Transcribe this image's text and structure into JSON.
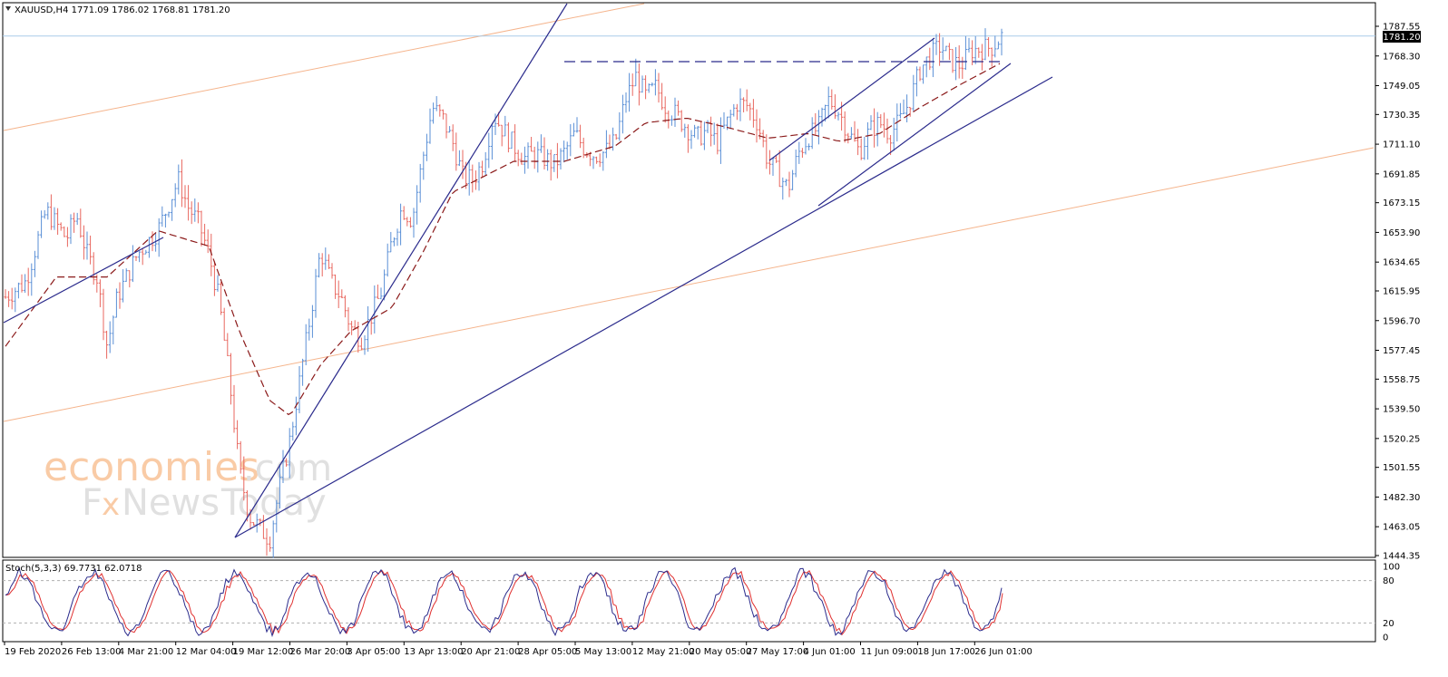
{
  "chart_data": [
    {
      "type": "candlestick",
      "header": "XAUUSD,H4  1771.09 1786.02 1768.81 1781.20",
      "symbol": "XAUUSD",
      "timeframe": "H4",
      "ohlc": {
        "open": 1771.09,
        "high": 1786.02,
        "low": 1768.81,
        "close": 1781.2
      },
      "current_price": 1781.2,
      "current_price_label": "1781.20",
      "ylim": [
        1444.35,
        1793
      ],
      "y_ticks": [
        1787.55,
        1768.3,
        1749.05,
        1730.35,
        1711.1,
        1691.85,
        1673.15,
        1653.9,
        1634.65,
        1615.95,
        1596.7,
        1577.45,
        1558.75,
        1539.5,
        1520.25,
        1501.55,
        1482.3,
        1463.05,
        1444.35
      ],
      "x_ticks": [
        "19 Feb 2020",
        "26 Feb 13:00",
        "4 Mar 21:00",
        "12 Mar 04:00",
        "19 Mar 12:00",
        "26 Mar 20:00",
        "3 Apr 05:00",
        "13 Apr 13:00",
        "20 Apr 21:00",
        "28 Apr 05:00",
        "5 May 13:00",
        "12 May 21:00",
        "20 May 05:00",
        "27 May 17:00",
        "4 Jun 01:00",
        "11 Jun 09:00",
        "18 Jun 17:00",
        "26 Jun 01:00"
      ],
      "price_path": [
        [
          0,
          1612
        ],
        [
          2,
          1622
        ],
        [
          4,
          1668
        ],
        [
          6,
          1650
        ],
        [
          7,
          1665
        ],
        [
          8,
          1640
        ],
        [
          9,
          1625
        ],
        [
          10,
          1580
        ],
        [
          11,
          1612
        ],
        [
          13,
          1640
        ],
        [
          15,
          1655
        ],
        [
          17,
          1688
        ],
        [
          18,
          1670
        ],
        [
          19,
          1660
        ],
        [
          20,
          1640
        ],
        [
          21,
          1610
        ],
        [
          22,
          1560
        ],
        [
          23,
          1500
        ],
        [
          24,
          1470
        ],
        [
          25,
          1462
        ],
        [
          26,
          1455
        ],
        [
          27,
          1490
        ],
        [
          28,
          1520
        ],
        [
          29,
          1560
        ],
        [
          30,
          1600
        ],
        [
          31,
          1642
        ],
        [
          32,
          1622
        ],
        [
          33,
          1612
        ],
        [
          34,
          1592
        ],
        [
          35,
          1585
        ],
        [
          36,
          1600
        ],
        [
          37,
          1616
        ],
        [
          38,
          1648
        ],
        [
          39,
          1670
        ],
        [
          40,
          1662
        ],
        [
          41,
          1700
        ],
        [
          42,
          1735
        ],
        [
          43,
          1728
        ],
        [
          44,
          1712
        ],
        [
          45,
          1690
        ],
        [
          46,
          1688
        ],
        [
          47,
          1700
        ],
        [
          48,
          1730
        ],
        [
          49,
          1720
        ],
        [
          50,
          1710
        ],
        [
          51,
          1702
        ],
        [
          52,
          1705
        ],
        [
          53,
          1702
        ],
        [
          54,
          1698
        ],
        [
          55,
          1706
        ],
        [
          56,
          1718
        ],
        [
          57,
          1708
        ],
        [
          58,
          1704
        ],
        [
          59,
          1706
        ],
        [
          60,
          1713
        ],
        [
          61,
          1740
        ],
        [
          62,
          1755
        ],
        [
          63,
          1742
        ],
        [
          64,
          1748
        ],
        [
          65,
          1735
        ],
        [
          66,
          1730
        ],
        [
          67,
          1722
        ],
        [
          68,
          1715
        ],
        [
          69,
          1720
        ],
        [
          70,
          1712
        ],
        [
          71,
          1725
        ],
        [
          72,
          1738
        ],
        [
          73,
          1736
        ],
        [
          74,
          1725
        ],
        [
          75,
          1700
        ],
        [
          76,
          1692
        ],
        [
          77,
          1682
        ],
        [
          78,
          1705
        ],
        [
          79,
          1716
        ],
        [
          80,
          1722
        ],
        [
          81,
          1740
        ],
        [
          82,
          1732
        ],
        [
          83,
          1718
        ],
        [
          84,
          1706
        ],
        [
          85,
          1720
        ],
        [
          86,
          1725
        ],
        [
          87,
          1718
        ],
        [
          88,
          1726
        ],
        [
          89,
          1740
        ],
        [
          90,
          1760
        ],
        [
          91,
          1768
        ],
        [
          92,
          1775
        ],
        [
          93,
          1765
        ],
        [
          94,
          1762
        ],
        [
          95,
          1772
        ],
        [
          96,
          1773
        ],
        [
          97,
          1774
        ],
        [
          98,
          1781
        ]
      ],
      "moving_average": [
        [
          0,
          1580
        ],
        [
          5,
          1625
        ],
        [
          10,
          1625
        ],
        [
          15,
          1655
        ],
        [
          20,
          1645
        ],
        [
          23,
          1590
        ],
        [
          26,
          1545
        ],
        [
          28,
          1535
        ],
        [
          31,
          1568
        ],
        [
          34,
          1590
        ],
        [
          38,
          1605
        ],
        [
          41,
          1640
        ],
        [
          44,
          1680
        ],
        [
          47,
          1690
        ],
        [
          50,
          1700
        ],
        [
          55,
          1700
        ],
        [
          60,
          1710
        ],
        [
          63,
          1725
        ],
        [
          67,
          1728
        ],
        [
          71,
          1722
        ],
        [
          75,
          1715
        ],
        [
          79,
          1718
        ],
        [
          82,
          1713
        ],
        [
          86,
          1718
        ],
        [
          90,
          1735
        ],
        [
          94,
          1750
        ],
        [
          98,
          1764
        ]
      ],
      "trendlines": [
        {
          "style": "solid",
          "color": "#2b2b8c",
          "from": [
            259,
            593
          ],
          "to": [
            625,
            4
          ]
        },
        {
          "style": "solid",
          "color": "#2b2b8c",
          "from": [
            4,
            356
          ],
          "to": [
            180,
            262
          ]
        },
        {
          "style": "solid",
          "color": "#2b2b8c",
          "from": [
            259,
            593
          ],
          "to": [
            1160,
            85
          ]
        },
        {
          "style": "solid",
          "color": "#2b2b8c",
          "from": [
            848,
            177
          ],
          "to": [
            1030,
            42
          ]
        },
        {
          "style": "solid",
          "color": "#2b2b8c",
          "from": [
            902,
            227
          ],
          "to": [
            1114,
            70
          ]
        },
        {
          "style": "dashed",
          "color": "#2b2b8c",
          "from": [
            622,
            68
          ],
          "to": [
            1105,
            68
          ]
        },
        {
          "style": "solid",
          "color": "#f5b48c",
          "from": [
            4,
            144
          ],
          "to": [
            710,
            4
          ]
        },
        {
          "style": "solid",
          "color": "#f5b48c",
          "from": [
            4,
            465
          ],
          "to": [
            1514,
            163
          ]
        }
      ],
      "indicator": {
        "type": "stochastic",
        "label": "Stoch(5,3,3) 69.7731 62.0718",
        "k_value": 69.7731,
        "d_value": 62.0718,
        "levels": [
          20,
          80
        ],
        "ylim": [
          0,
          100
        ],
        "y_ticks": [
          "100",
          "80",
          "20",
          "0"
        ]
      },
      "colors": {
        "bull": "#5a8fd6",
        "bear": "#e8675f",
        "trendline": "#2b2b8c",
        "fib_line": "#f5b48c",
        "moving_average": "#8b1a1a",
        "stoch_main": "#2b2b8c",
        "stoch_signal": "#e03030",
        "price_line": "#a9cce8"
      }
    }
  ],
  "watermark": {
    "line1_brand": "economies",
    "line1_suffix": ".com",
    "line2_prefix": "F",
    "line2_x": "x",
    "line2_news": "News",
    "line2_today": "Today"
  }
}
